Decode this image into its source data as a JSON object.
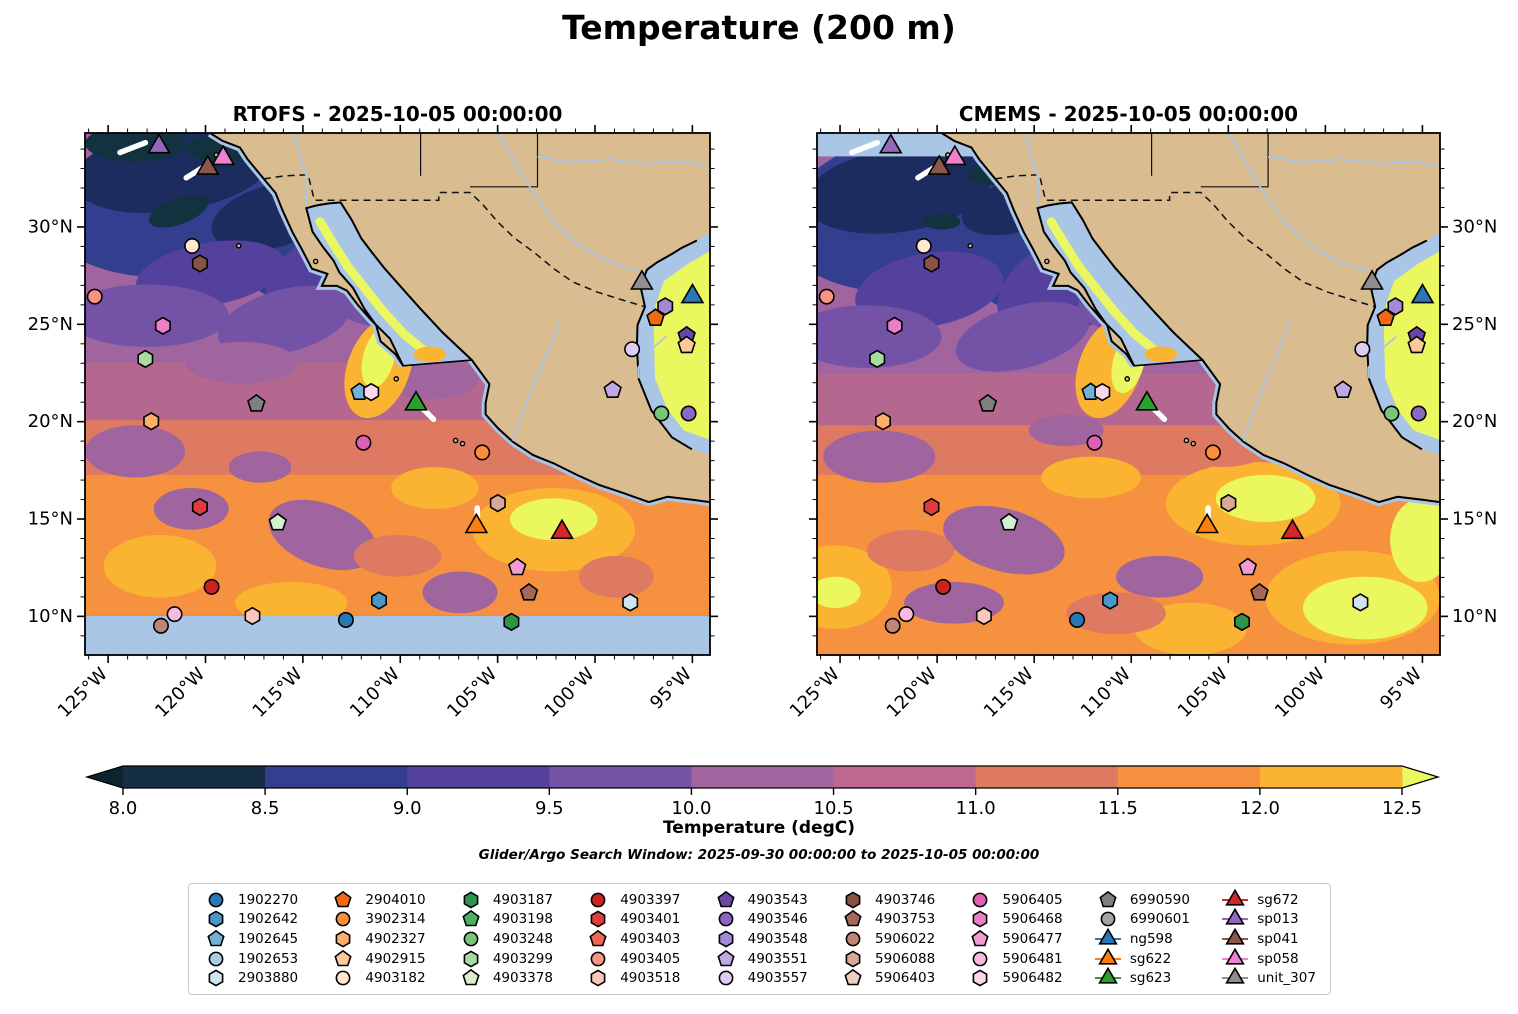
{
  "figure": {
    "title": "Temperature (200 m)"
  },
  "panels": [
    {
      "name": "rtofs",
      "title": "RTOFS - 2025-10-05 00:00:00",
      "lat_labels": "left",
      "no_data_band": "bottom"
    },
    {
      "name": "cmems",
      "title": "CMEMS - 2025-10-05 00:00:00",
      "lat_labels": "right",
      "no_data_band": "top"
    }
  ],
  "axes": {
    "lon_ticks": [
      {
        "label": "125°W",
        "f": 3.74
      },
      {
        "label": "120°W",
        "f": 19.31
      },
      {
        "label": "115°W",
        "f": 34.89
      },
      {
        "label": "110°W",
        "f": 50.47
      },
      {
        "label": "105°W",
        "f": 66.04
      },
      {
        "label": "100°W",
        "f": 81.62
      },
      {
        "label": "95°W",
        "f": 97.2
      }
    ],
    "lat_ticks": [
      {
        "label": "30°N",
        "f": 17.91
      },
      {
        "label": "25°N",
        "f": 36.57
      },
      {
        "label": "20°N",
        "f": 55.22
      },
      {
        "label": "15°N",
        "f": 73.88
      },
      {
        "label": "10°N",
        "f": 92.54
      }
    ]
  },
  "colorbar": {
    "label": "Temperature (degC)",
    "ticks": [
      "8.0",
      "8.5",
      "9.0",
      "9.5",
      "10.0",
      "10.5",
      "11.0",
      "11.5",
      "12.0",
      "12.5"
    ],
    "colors": [
      "#152e44",
      "#333e8e",
      "#54419e",
      "#7452a5",
      "#a0659f",
      "#bc688f",
      "#df7a62",
      "#f6923f",
      "#fbb431"
    ],
    "under": "#0d2330",
    "over": "#ecf862"
  },
  "subtitle": "Glider/Argo Search Window: 2025-09-30 00:00:00 to 2025-10-05 00:00:00",
  "legend": {
    "entries": [
      {
        "id": "1902270",
        "label": "1902270",
        "shape": "circle",
        "color": "#2878b8"
      },
      {
        "id": "1902642",
        "label": "1902642",
        "shape": "hexagon",
        "color": "#4a98c9"
      },
      {
        "id": "1902645",
        "label": "1902645",
        "shape": "pentagon",
        "color": "#73b2d8"
      },
      {
        "id": "1902653",
        "label": "1902653",
        "shape": "circle",
        "color": "#a6cee3"
      },
      {
        "id": "2903880",
        "label": "2903880",
        "shape": "hexagon",
        "color": "#cfe4f2"
      },
      {
        "id": "2904010",
        "label": "2904010",
        "shape": "pentagon",
        "color": "#f16913"
      },
      {
        "id": "3902314",
        "label": "3902314",
        "shape": "circle",
        "color": "#fd8d3c"
      },
      {
        "id": "4902327",
        "label": "4902327",
        "shape": "hexagon",
        "color": "#fdae6b"
      },
      {
        "id": "4902915",
        "label": "4902915",
        "shape": "pentagon",
        "color": "#fdc998"
      },
      {
        "id": "4903182",
        "label": "4903182",
        "shape": "circle",
        "color": "#fee8d0"
      },
      {
        "id": "4903187",
        "label": "4903187",
        "shape": "hexagon",
        "color": "#2e9449"
      },
      {
        "id": "4903198",
        "label": "4903198",
        "shape": "pentagon",
        "color": "#4bb062"
      },
      {
        "id": "4903248",
        "label": "4903248",
        "shape": "circle",
        "color": "#78c679"
      },
      {
        "id": "4903299",
        "label": "4903299",
        "shape": "hexagon",
        "color": "#a8dda0"
      },
      {
        "id": "4903378",
        "label": "4903378",
        "shape": "pentagon",
        "color": "#d5efcf"
      },
      {
        "id": "4903397",
        "label": "4903397",
        "shape": "circle",
        "color": "#cc2222"
      },
      {
        "id": "4903401",
        "label": "4903401",
        "shape": "hexagon",
        "color": "#e03c3c"
      },
      {
        "id": "4903403",
        "label": "4903403",
        "shape": "pentagon",
        "color": "#ef6855"
      },
      {
        "id": "4903405",
        "label": "4903405",
        "shape": "circle",
        "color": "#f99485"
      },
      {
        "id": "4903518",
        "label": "4903518",
        "shape": "hexagon",
        "color": "#fcc6bd"
      },
      {
        "id": "4903543",
        "label": "4903543",
        "shape": "pentagon",
        "color": "#6a46a8"
      },
      {
        "id": "4903546",
        "label": "4903546",
        "shape": "circle",
        "color": "#8a68c2"
      },
      {
        "id": "4903548",
        "label": "4903548",
        "shape": "hexagon",
        "color": "#a489d4"
      },
      {
        "id": "4903551",
        "label": "4903551",
        "shape": "pentagon",
        "color": "#c0a8e2"
      },
      {
        "id": "4903557",
        "label": "4903557",
        "shape": "circle",
        "color": "#ddcdf0"
      },
      {
        "id": "4903746",
        "label": "4903746",
        "shape": "hexagon",
        "color": "#8a5244"
      },
      {
        "id": "4903753",
        "label": "4903753",
        "shape": "pentagon",
        "color": "#a56858"
      },
      {
        "id": "5906022",
        "label": "5906022",
        "shape": "circle",
        "color": "#bf8576"
      },
      {
        "id": "5906088",
        "label": "5906088",
        "shape": "hexagon",
        "color": "#d8a898"
      },
      {
        "id": "5906403",
        "label": "5906403",
        "shape": "pentagon",
        "color": "#eccfc2"
      },
      {
        "id": "5906405",
        "label": "5906405",
        "shape": "circle",
        "color": "#e060b8"
      },
      {
        "id": "5906468",
        "label": "5906468",
        "shape": "hexagon",
        "color": "#e97fc4"
      },
      {
        "id": "5906477",
        "label": "5906477",
        "shape": "pentagon",
        "color": "#f19cd2"
      },
      {
        "id": "5906481",
        "label": "5906481",
        "shape": "circle",
        "color": "#f7bade"
      },
      {
        "id": "5906482",
        "label": "5906482",
        "shape": "hexagon",
        "color": "#fbd7ec"
      },
      {
        "id": "6990590",
        "label": "6990590",
        "shape": "pentagon",
        "color": "#808080"
      },
      {
        "id": "6990601",
        "label": "6990601",
        "shape": "circle",
        "color": "#a3a3a3"
      },
      {
        "id": "ng598",
        "label": "ng598",
        "shape": "triangle",
        "color": "#2878b8",
        "line": true
      },
      {
        "id": "sg622",
        "label": "sg622",
        "shape": "triangle",
        "color": "#ff7f0e",
        "line": true
      },
      {
        "id": "sg623",
        "label": "sg623",
        "shape": "triangle",
        "color": "#2ca02c",
        "line": true
      },
      {
        "id": "sg672",
        "label": "sg672",
        "shape": "triangle",
        "color": "#d62728",
        "line": true
      },
      {
        "id": "sp013",
        "label": "sp013",
        "shape": "triangle",
        "color": "#9467bd",
        "line": true
      },
      {
        "id": "sp041",
        "label": "sp041",
        "shape": "triangle",
        "color": "#8c564b",
        "line": true
      },
      {
        "id": "sp058",
        "label": "sp058",
        "shape": "triangle",
        "color": "#ee82d0",
        "line": true
      },
      {
        "id": "unit_307",
        "label": "unit_307",
        "shape": "triangle",
        "color": "#8f8f8f",
        "line": true
      }
    ]
  },
  "chart_data": {
    "type": "heatmap",
    "title": "Temperature (200 m)",
    "variable": "Temperature",
    "units": "degC",
    "depth_m": 200,
    "model_runs": [
      "RTOFS - 2025-10-05 00:00:00",
      "CMEMS - 2025-10-05 00:00:00"
    ],
    "lon_range": [
      -126.2,
      -94.1
    ],
    "lat_range": [
      8.0,
      34.8
    ],
    "colorbar_range": [
      8.0,
      12.5
    ],
    "colorbar_step": 0.5,
    "no_data_color": "#a9c6e6",
    "land_color": "#d9bc8f",
    "search_window": "2025-09-30 00:00:00 to 2025-10-05 00:00:00",
    "markers": [
      {
        "id": "sp013",
        "lon": -122.4,
        "lat": 34.1
      },
      {
        "id": "sp041",
        "lon": -119.9,
        "lat": 33.0
      },
      {
        "id": "sp058",
        "lon": -119.1,
        "lat": 33.5
      },
      {
        "id": "4903182",
        "lon": -120.7,
        "lat": 29.0
      },
      {
        "id": "4903746",
        "lon": -120.3,
        "lat": 28.1
      },
      {
        "id": "4903405",
        "lon": -125.7,
        "lat": 26.4
      },
      {
        "id": "5906468",
        "lon": -122.2,
        "lat": 24.9
      },
      {
        "id": "4903299",
        "lon": -123.1,
        "lat": 23.2
      },
      {
        "id": "6990590",
        "lon": -117.4,
        "lat": 20.9
      },
      {
        "id": "4902327",
        "lon": -122.8,
        "lat": 20.0
      },
      {
        "id": "1902645",
        "lon": -112.1,
        "lat": 21.5
      },
      {
        "id": "5906482",
        "lon": -111.5,
        "lat": 21.5
      },
      {
        "id": "sg623",
        "lon": -109.2,
        "lat": 20.9
      },
      {
        "id": "5906405",
        "lon": -111.9,
        "lat": 18.9
      },
      {
        "id": "3902314",
        "lon": -105.8,
        "lat": 18.4
      },
      {
        "id": "4903401",
        "lon": -120.3,
        "lat": 15.6
      },
      {
        "id": "4903378",
        "lon": -116.3,
        "lat": 14.8
      },
      {
        "id": "sg622",
        "lon": -106.1,
        "lat": 14.6
      },
      {
        "id": "sg672",
        "lon": -101.7,
        "lat": 14.3
      },
      {
        "id": "5906477",
        "lon": -104.0,
        "lat": 12.5
      },
      {
        "id": "4903397",
        "lon": -119.7,
        "lat": 11.5
      },
      {
        "id": "4903753",
        "lon": -103.4,
        "lat": 11.2
      },
      {
        "id": "1902642",
        "lon": -111.1,
        "lat": 10.8
      },
      {
        "id": "2903880",
        "lon": -98.2,
        "lat": 10.7
      },
      {
        "id": "5906022",
        "lon": -122.3,
        "lat": 9.5
      },
      {
        "id": "5906481",
        "lon": -121.6,
        "lat": 10.1
      },
      {
        "id": "4903518",
        "lon": -117.6,
        "lat": 10.0
      },
      {
        "id": "1902270",
        "lon": -112.8,
        "lat": 9.8
      },
      {
        "id": "4903187",
        "lon": -104.3,
        "lat": 9.7
      },
      {
        "id": "5906088",
        "lon": -105.0,
        "lat": 15.8
      },
      {
        "id": "unit_307",
        "lon": -97.6,
        "lat": 27.1
      },
      {
        "id": "ng598",
        "lon": -95.0,
        "lat": 26.4
      },
      {
        "id": "4903548",
        "lon": -96.4,
        "lat": 25.9
      },
      {
        "id": "2904010",
        "lon": -96.9,
        "lat": 25.3
      },
      {
        "id": "4903543",
        "lon": -95.3,
        "lat": 24.4
      },
      {
        "id": "4902915",
        "lon": -95.3,
        "lat": 23.9
      },
      {
        "id": "4903557",
        "lon": -98.1,
        "lat": 23.7
      },
      {
        "id": "4903551",
        "lon": -99.1,
        "lat": 21.6
      },
      {
        "id": "4903248",
        "lon": -96.6,
        "lat": 20.4
      },
      {
        "id": "4903546",
        "lon": -95.2,
        "lat": 20.4
      }
    ],
    "tracks": {
      "sp013": [
        [
          -124.4,
          33.8
        ],
        [
          -123.1,
          34.3
        ]
      ],
      "sp041": [
        [
          -121.0,
          32.5
        ],
        [
          -120.2,
          33.0
        ]
      ],
      "sg623": [
        [
          -109.0,
          20.8
        ],
        [
          -108.3,
          20.1
        ]
      ],
      "sg622": [
        [
          -106.05,
          15.55
        ],
        [
          -106.05,
          14.95
        ]
      ]
    }
  }
}
